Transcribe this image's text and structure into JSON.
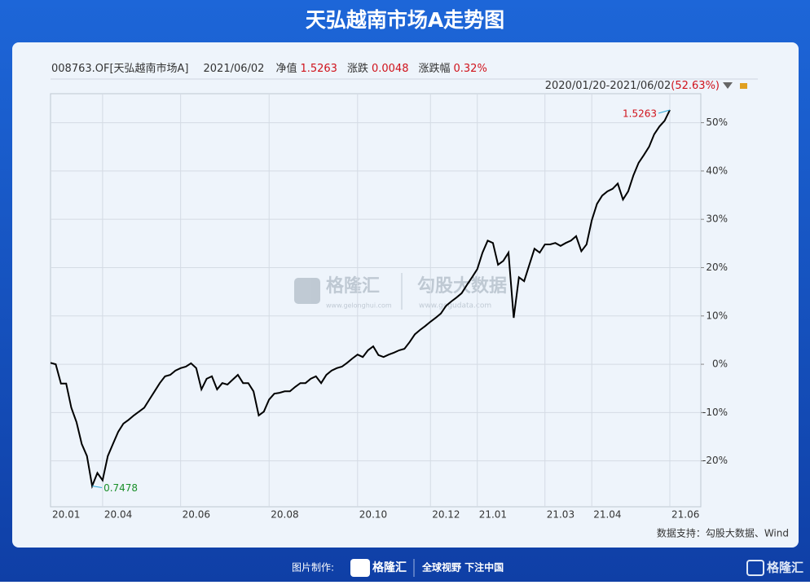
{
  "chart_data": {
    "type": "line",
    "title": "天弘越南市场A走势图",
    "header": {
      "code": "008763.OF[天弘越南市场A]",
      "date": "2021/06/02",
      "nav_label": "净值",
      "nav": "1.5263",
      "change_label": "涨跌",
      "change": "0.0048",
      "pct_label": "涨跌幅",
      "pct": "0.32%",
      "range": "2020/01/20-2021/06/02",
      "range_pct": "(52.63%)"
    },
    "categories": [
      "20.01",
      null,
      null,
      null,
      null,
      null,
      null,
      null,
      null,
      null,
      "20.04",
      null,
      null,
      null,
      null,
      null,
      null,
      null,
      null,
      null,
      null,
      null,
      null,
      null,
      null,
      "20.06",
      null,
      null,
      null,
      null,
      null,
      null,
      null,
      null,
      null,
      null,
      null,
      null,
      null,
      null,
      null,
      null,
      "20.08",
      null,
      null,
      null,
      null,
      null,
      null,
      null,
      null,
      null,
      null,
      null,
      null,
      null,
      null,
      null,
      null,
      "20.10",
      null,
      null,
      null,
      null,
      null,
      null,
      null,
      null,
      null,
      null,
      null,
      null,
      null,
      "20.12",
      null,
      null,
      null,
      null,
      null,
      null,
      null,
      null,
      "21.01",
      null,
      null,
      null,
      null,
      null,
      null,
      null,
      null,
      null,
      null,
      null,
      null,
      "21.03",
      null,
      null,
      null,
      null,
      null,
      null,
      null,
      null,
      "21.04",
      null,
      null,
      null,
      null,
      null,
      null,
      null,
      null,
      null,
      null,
      null,
      null,
      null,
      null,
      "21.06"
    ],
    "series": [
      {
        "color": "#000000",
        "values": [
          0.3,
          0,
          -4,
          -4,
          -9,
          -12,
          -16.5,
          -19,
          -25.2,
          -22.5,
          -24,
          -19,
          -16.5,
          -14,
          -12.3,
          -11.5,
          -10.6,
          -9.8,
          -9,
          -7.3,
          -5.6,
          -3.9,
          -2.5,
          -2.2,
          -1.3,
          -0.8,
          -0.5,
          0.2,
          -0.8,
          -5.2,
          -3,
          -2.5,
          -5.2,
          -3.9,
          -4.2,
          -3.2,
          -2.2,
          -3.9,
          -3.9,
          -5.6,
          -10.6,
          -9.8,
          -7.3,
          -6.1,
          -5.9,
          -5.6,
          -5.6,
          -4.7,
          -3.9,
          -3.9,
          -3,
          -2.5,
          -3.9,
          -2.2,
          -1.3,
          -0.8,
          -0.5,
          0.3,
          1.2,
          2,
          1.5,
          2.9,
          3.7,
          1.9,
          1.5,
          2,
          2.4,
          2.9,
          3.2,
          4.6,
          6.2,
          7.1,
          7.9,
          8.8,
          9.6,
          10.5,
          12.1,
          13,
          13.8,
          14.7,
          16.4,
          18,
          19.7,
          23.1,
          25.6,
          25.1,
          20.6,
          21.4,
          23.1,
          9.6,
          18,
          17.2,
          20.6,
          23.9,
          23.1,
          24.8,
          24.8,
          25.1,
          24.5,
          25.1,
          25.6,
          26.5,
          23.4,
          24.8,
          29.8,
          33.2,
          34.9,
          35.8,
          36.3,
          37.4,
          34.1,
          35.8,
          39.1,
          41.7,
          43.3,
          45,
          47.6,
          49.2,
          50.4,
          52.63
        ]
      }
    ],
    "annotations": {
      "min": "0.7478",
      "max": "1.5263"
    },
    "ylim": [
      -29.5,
      56
    ],
    "yticks": [
      {
        "value": -20,
        "label": "-20%"
      },
      {
        "value": -10,
        "label": "-10%"
      },
      {
        "value": 0,
        "label": "0%"
      },
      {
        "value": 10,
        "label": "10%"
      },
      {
        "value": 20,
        "label": "20%"
      },
      {
        "value": 30,
        "label": "30%"
      },
      {
        "value": 40,
        "label": "40%"
      },
      {
        "value": 50,
        "label": "50%"
      }
    ],
    "grid": true,
    "source": "数据支持：勾股大数据、Wind",
    "watermark": {
      "brand": "格隆汇",
      "brand_url": "www.gelonghui.com",
      "data_brand": "勾股大数据",
      "data_url": "www.gogudata.com"
    },
    "footer": {
      "made_by": "图片制作:",
      "brand": "格隆汇",
      "slogan": "全球视野 下注中国",
      "corner_brand": "格隆汇"
    }
  }
}
